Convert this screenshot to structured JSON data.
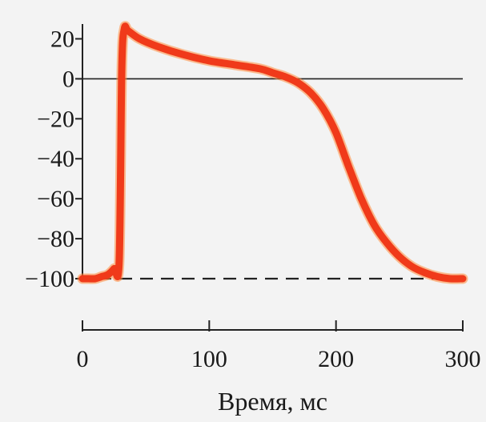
{
  "chart_data": {
    "type": "line",
    "title": "",
    "xlabel": "Время, мс",
    "ylabel": "",
    "xlim": [
      0,
      300
    ],
    "ylim": [
      -100,
      25
    ],
    "x_ticks": [
      0,
      100,
      200,
      300
    ],
    "x_tick_labels": [
      "0",
      "100",
      "200",
      "300"
    ],
    "y_ticks": [
      20,
      0,
      -20,
      -40,
      -60,
      -80,
      -100
    ],
    "y_tick_labels": [
      "20",
      "0",
      "−20",
      "−40",
      "−60",
      "−80",
      "−100"
    ],
    "grid": false,
    "reference_lines": [
      {
        "axis": "y",
        "value": 0,
        "style": "solid"
      },
      {
        "axis": "y",
        "value": -100,
        "style": "dashed"
      }
    ],
    "series": [
      {
        "color": "#f03a1a",
        "x": [
          0,
          5,
          10,
          15,
          20,
          25,
          29,
          31,
          33,
          36,
          45,
          60,
          80,
          100,
          120,
          140,
          150,
          160,
          170,
          180,
          190,
          200,
          210,
          220,
          230,
          240,
          250,
          260,
          270,
          280,
          290,
          300
        ],
        "y": [
          -100,
          -100,
          -100,
          -99,
          -98,
          -95,
          -91,
          5,
          25,
          24,
          20,
          16,
          12,
          9,
          7,
          5,
          3,
          1,
          -2,
          -7,
          -15,
          -27,
          -44,
          -60,
          -73,
          -82,
          -89,
          -94,
          -97,
          -99,
          -100,
          -100
        ]
      }
    ]
  }
}
